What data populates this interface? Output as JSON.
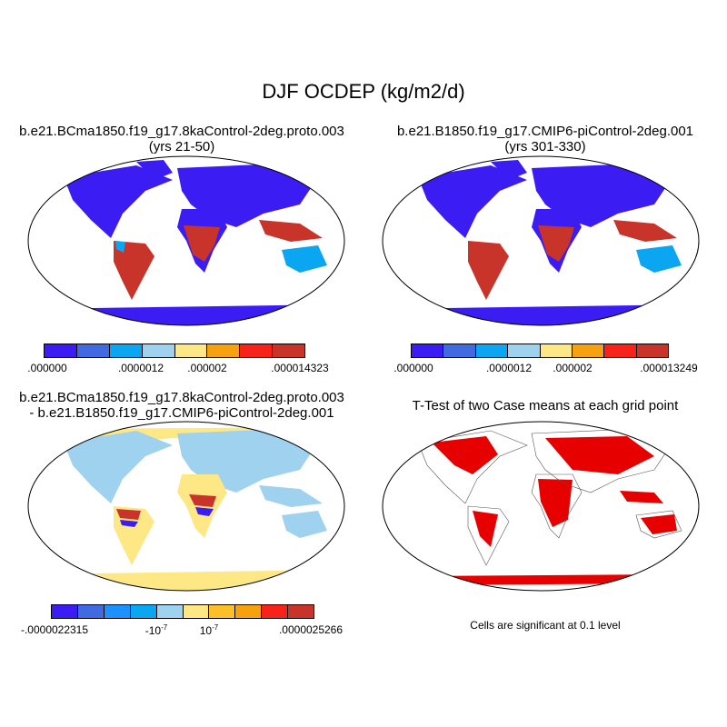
{
  "title": "DJF OCDEP (kg/m2/d)",
  "panels": {
    "case1": {
      "title_line1": "b.e21.BCma1850.f19_g17.8kaControl-2deg.proto.003",
      "title_line2": "(yrs 21-50)",
      "colorbar": {
        "colors": [
          "#3b1cf2",
          "#4169e1",
          "#0aa6f2",
          "#9ed2ee",
          "#fde885",
          "#f6a20f",
          "#f7231a",
          "#c8342a"
        ],
        "labels": [
          ".000000",
          ".0000012",
          ".000002",
          ".000014323"
        ]
      }
    },
    "case2": {
      "title_line1": "b.e21.B1850.f19_g17.CMIP6-piControl-2deg.001",
      "title_line2": "(yrs 301-330)",
      "colorbar": {
        "colors": [
          "#3b1cf2",
          "#4169e1",
          "#0aa6f2",
          "#9ed2ee",
          "#fde885",
          "#f6a20f",
          "#f7231a",
          "#c8342a"
        ],
        "labels": [
          ".000000",
          ".0000012",
          ".000002",
          ".000013249"
        ]
      }
    },
    "diff": {
      "title_line1": "b.e21.BCma1850.f19_g17.8kaControl-2deg.proto.003",
      "title_line2": "- b.e21.B1850.f19_g17.CMIP6-piControl-2deg.001",
      "colorbar": {
        "colors": [
          "#3b1cf2",
          "#4169e1",
          "#1e90ff",
          "#0aa6f2",
          "#9ed2ee",
          "#fde885",
          "#fbbf2a",
          "#f6a20f",
          "#f7231a",
          "#c8342a"
        ],
        "labels": [
          "-.0000022315",
          "-10",
          "10",
          ".0000025266"
        ],
        "exponent": "-7"
      }
    },
    "ttest": {
      "title": "T-Test of two Case means at each grid point",
      "note": "Cells are significant at 0.1 level",
      "color": "#e60000"
    }
  }
}
